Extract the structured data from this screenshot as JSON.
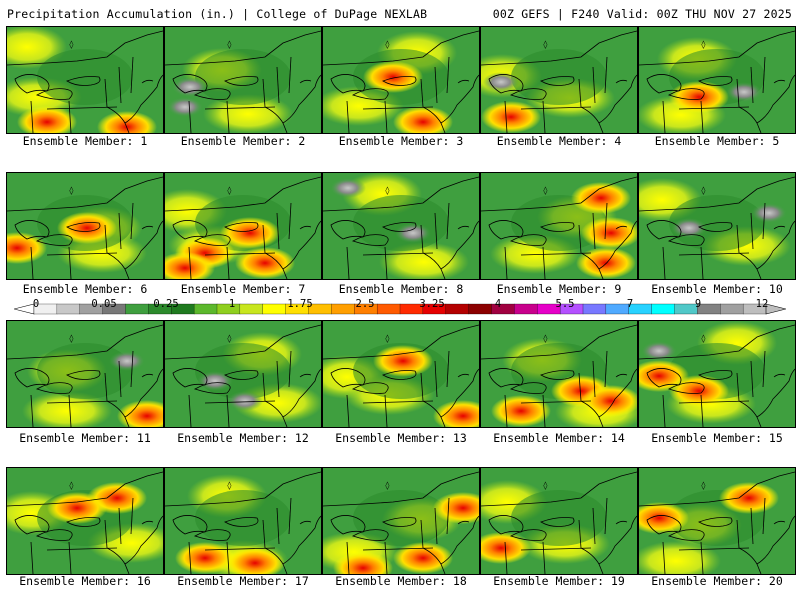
{
  "header": {
    "left": "Precipitation Accumulation (in.) | College of DuPage NEXLAB",
    "right": "00Z GEFS | F240 Valid: 00Z THU NOV 27 2025"
  },
  "colorbar": {
    "ticks": [
      "0",
      "0.05",
      "0.25",
      "1",
      "1.75",
      "2.5",
      "3.25",
      "4",
      "5.5",
      "7",
      "9",
      "12"
    ],
    "colors": [
      "#f0f0f0",
      "#c8c8c8",
      "#a0a0a0",
      "#787878",
      "#3f9f3f",
      "#2c8a2c",
      "#1f7a1f",
      "#5cb82c",
      "#8fcf1f",
      "#c8e61e",
      "#ffff00",
      "#ffdf00",
      "#ffbf00",
      "#ff9f00",
      "#ff7f00",
      "#ff5a00",
      "#ff2a00",
      "#e60000",
      "#b40000",
      "#8c0000",
      "#a00040",
      "#c8008c",
      "#e600c8",
      "#b450ff",
      "#7878ff",
      "#50aaff",
      "#28d2ff",
      "#00ffff",
      "#50c8c8",
      "#828282",
      "#a0a0a0",
      "#bebebe"
    ]
  },
  "members": [
    {
      "label": "Ensemble Member: 1",
      "hot": [
        [
          40,
          95
        ],
        [
          120,
          100
        ]
      ],
      "gray": []
    },
    {
      "label": "Ensemble Member: 2",
      "hot": [],
      "gray": [
        [
          25,
          60
        ],
        [
          20,
          80
        ]
      ]
    },
    {
      "label": "Ensemble Member: 3",
      "hot": [
        [
          70,
          50
        ],
        [
          100,
          95
        ]
      ],
      "gray": []
    },
    {
      "label": "Ensemble Member: 4",
      "hot": [
        [
          30,
          90
        ]
      ],
      "gray": [
        [
          20,
          55
        ]
      ]
    },
    {
      "label": "Ensemble Member: 5",
      "hot": [
        [
          60,
          70
        ]
      ],
      "gray": [
        [
          105,
          65
        ]
      ]
    },
    {
      "label": "Ensemble Member: 6",
      "hot": [
        [
          10,
          75
        ],
        [
          80,
          55
        ]
      ],
      "gray": []
    },
    {
      "label": "Ensemble Member: 7",
      "hot": [
        [
          40,
          80
        ],
        [
          20,
          95
        ],
        [
          85,
          60
        ],
        [
          100,
          90
        ]
      ],
      "gray": []
    },
    {
      "label": "Ensemble Member: 8",
      "hot": [],
      "gray": [
        [
          25,
          15
        ],
        [
          90,
          60
        ]
      ]
    },
    {
      "label": "Ensemble Member: 9",
      "hot": [
        [
          120,
          25
        ],
        [
          130,
          60
        ],
        [
          125,
          90
        ]
      ],
      "gray": []
    },
    {
      "label": "Ensemble Member: 10",
      "hot": [],
      "gray": [
        [
          50,
          55
        ],
        [
          130,
          40
        ]
      ]
    },
    {
      "label": "Ensemble Member: 11",
      "hot": [
        [
          140,
          95
        ]
      ],
      "gray": [
        [
          120,
          40
        ]
      ]
    },
    {
      "label": "Ensemble Member: 12",
      "hot": [],
      "gray": [
        [
          80,
          80
        ],
        [
          50,
          60
        ]
      ]
    },
    {
      "label": "Ensemble Member: 13",
      "hot": [
        [
          80,
          40
        ],
        [
          140,
          95
        ]
      ],
      "gray": []
    },
    {
      "label": "Ensemble Member: 14",
      "hot": [
        [
          40,
          90
        ],
        [
          100,
          70
        ],
        [
          130,
          80
        ]
      ],
      "gray": []
    },
    {
      "label": "Ensemble Member: 15",
      "hot": [
        [
          20,
          55
        ],
        [
          60,
          70
        ]
      ],
      "gray": [
        [
          20,
          30
        ]
      ]
    },
    {
      "label": "Ensemble Member: 16",
      "hot": [
        [
          110,
          30
        ],
        [
          70,
          40
        ]
      ],
      "gray": []
    },
    {
      "label": "Ensemble Member: 17",
      "hot": [
        [
          40,
          90
        ],
        [
          90,
          95
        ]
      ],
      "gray": []
    },
    {
      "label": "Ensemble Member: 18",
      "hot": [
        [
          40,
          100
        ],
        [
          100,
          90
        ],
        [
          140,
          40
        ]
      ],
      "gray": []
    },
    {
      "label": "Ensemble Member: 19",
      "hot": [
        [
          20,
          80
        ]
      ],
      "gray": []
    },
    {
      "label": "Ensemble Member: 20",
      "hot": [
        [
          20,
          50
        ],
        [
          110,
          30
        ]
      ],
      "gray": []
    }
  ]
}
